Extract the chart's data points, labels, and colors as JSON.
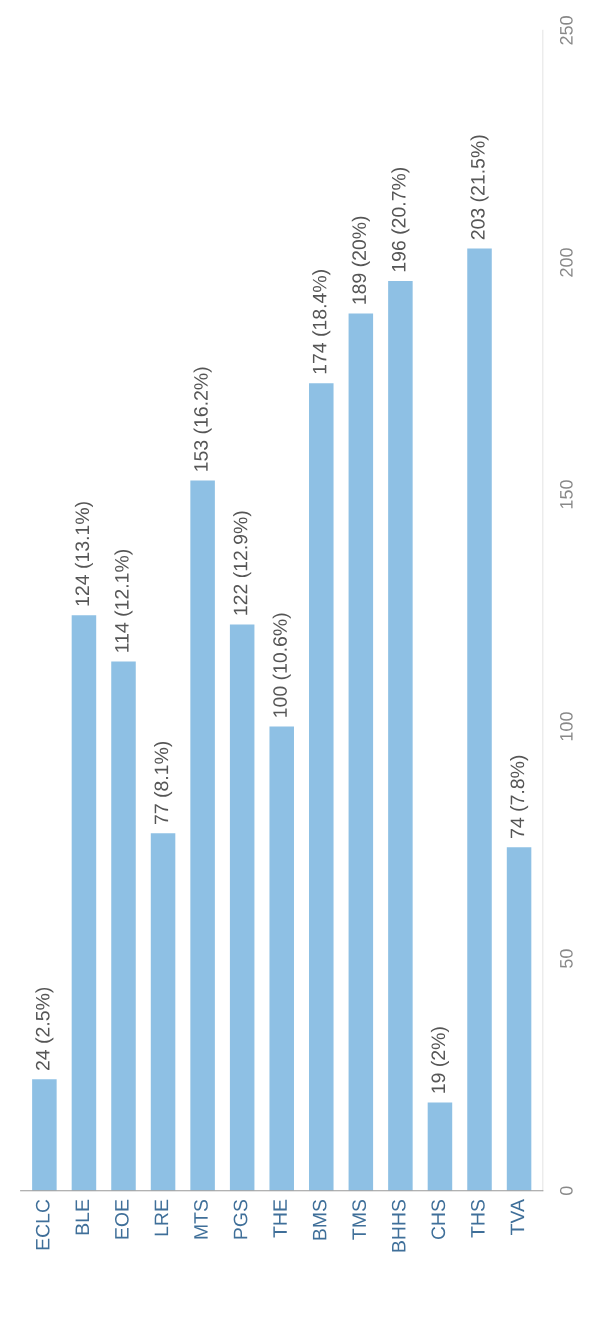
{
  "chart_data": {
    "type": "bar",
    "categories": [
      "ECLC",
      "BLE",
      "EOE",
      "LRE",
      "MTS",
      "PGS",
      "THE",
      "BMS",
      "TMS",
      "BHHS",
      "CHS",
      "THS",
      "TVA"
    ],
    "values": [
      24,
      124,
      114,
      77,
      153,
      122,
      100,
      174,
      189,
      196,
      19,
      203,
      74
    ],
    "value_labels": [
      "24 (2.5%)",
      "124 (13.1%)",
      "114 (12.1%)",
      "77 (8.1%)",
      "153 (16.2%)",
      "122 (12.9%)",
      "100 (10.6%)",
      "174 (18.4%)",
      "189 (20%)",
      "196 (20.7%)",
      "19 (2%)",
      "203 (21.5%)",
      "74 (7.8%)"
    ],
    "color": "#8ec0e4",
    "ylim": [
      0,
      250
    ],
    "yticks": [
      0,
      50,
      100,
      150,
      200,
      250
    ],
    "grid": false,
    "legend": false
  }
}
